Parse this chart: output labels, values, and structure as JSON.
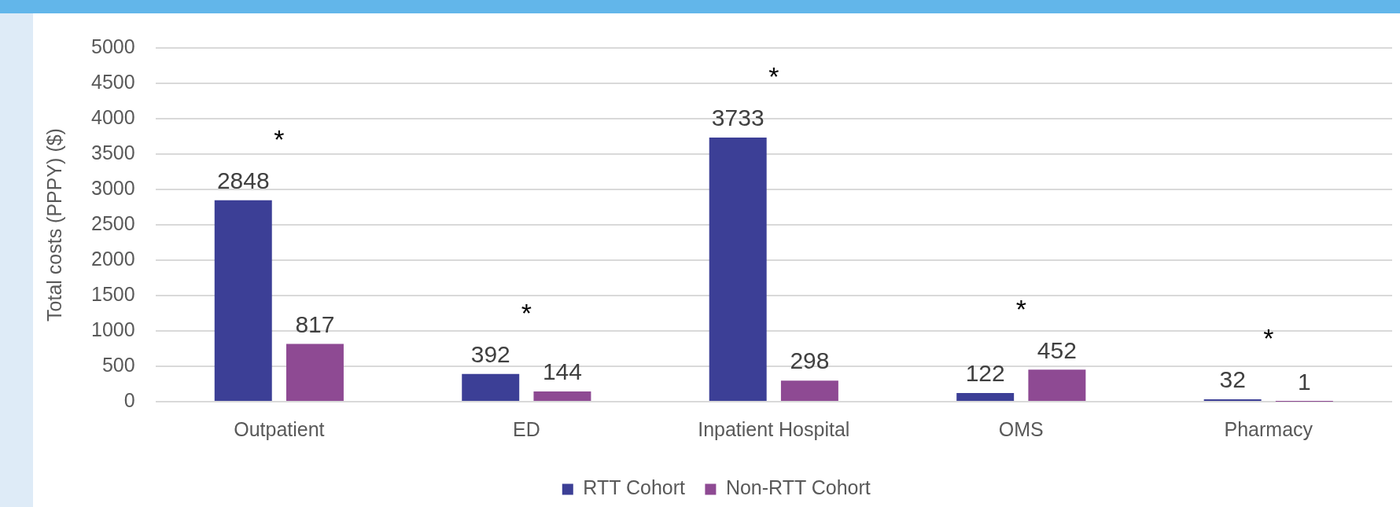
{
  "chart_data": {
    "type": "bar",
    "ylabel": "Total costs (PPPY) ($)",
    "categories": [
      "Outpatient",
      "ED",
      "Inpatient Hospital",
      "OMS",
      "Pharmacy"
    ],
    "series": [
      {
        "name": "RTT Cohort",
        "color": "#3c3f96",
        "values": [
          2848,
          392,
          3733,
          122,
          32
        ]
      },
      {
        "name": "Non-RTT Cohort",
        "color": "#8e4a93",
        "values": [
          817,
          144,
          298,
          452,
          1
        ]
      }
    ],
    "ylim": [
      0,
      5000
    ],
    "yticks": [
      0,
      500,
      1000,
      1500,
      2000,
      2500,
      3000,
      3500,
      4000,
      4500,
      5000
    ],
    "grid": "y",
    "legend": "bottom",
    "data_labels": true,
    "annotations": [
      "*",
      "*",
      "*",
      "*",
      "*"
    ]
  }
}
